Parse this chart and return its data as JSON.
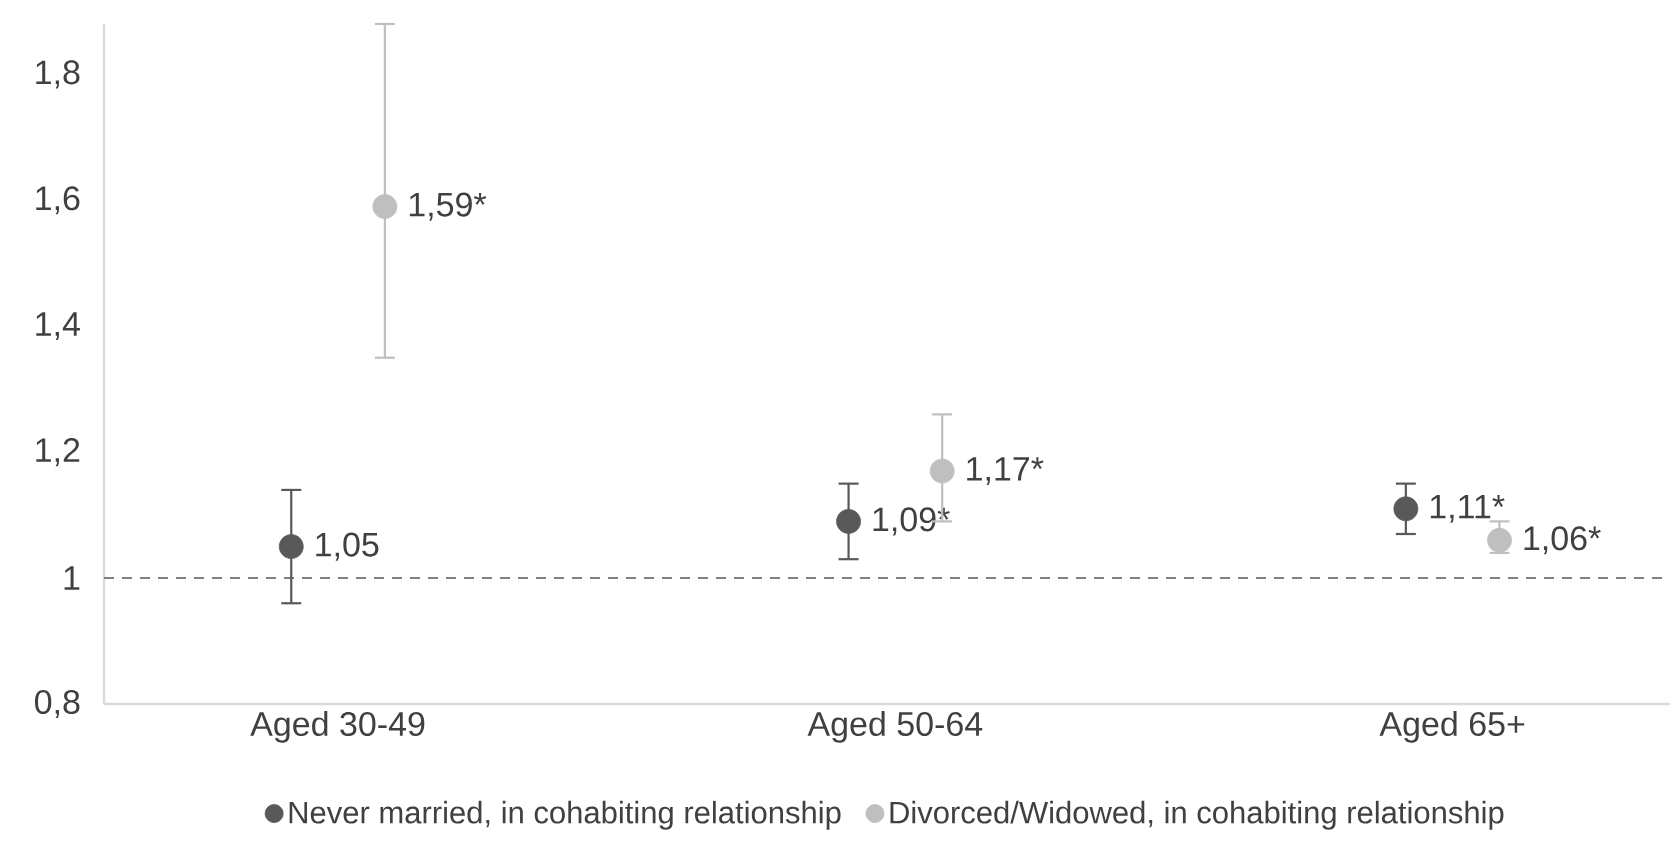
{
  "chart_data": {
    "type": "scatter",
    "categories": [
      "Aged 30-49",
      "Aged 50-64",
      "Aged 65+"
    ],
    "series": [
      {
        "name": "Never married, in cohabiting relationship",
        "color": "#595959",
        "values": [
          1.05,
          1.09,
          1.11
        ],
        "errors": [
          [
            0.96,
            1.14
          ],
          [
            1.03,
            1.15
          ],
          [
            1.07,
            1.15
          ]
        ],
        "value_labels": [
          "1,05",
          "1,09*",
          "1,11*"
        ]
      },
      {
        "name": "Divorced/Widowed, in cohabiting relationship",
        "color": "#bfbfbf",
        "values": [
          1.59,
          1.17,
          1.06
        ],
        "errors": [
          [
            1.35,
            1.88
          ],
          [
            1.09,
            1.26
          ],
          [
            1.04,
            1.09
          ]
        ],
        "value_labels": [
          "1,59*",
          "1,17*",
          "1,06*"
        ]
      }
    ],
    "ylim": [
      0.8,
      1.88
    ],
    "yticks": [
      {
        "value": 0.8,
        "label": "0,8"
      },
      1,
      {
        "value": 1.2,
        "label": "1,2"
      },
      {
        "value": 1.4,
        "label": "1,4"
      },
      {
        "value": 1.6,
        "label": "1,6"
      },
      {
        "value": 1.8,
        "label": "1,8"
      }
    ],
    "ref_lines": [
      {
        "axis": "y",
        "value": 1,
        "color": "#808080",
        "line_style": "dashed"
      }
    ],
    "grid": false,
    "legend": "bottom",
    "marker": "circle"
  }
}
